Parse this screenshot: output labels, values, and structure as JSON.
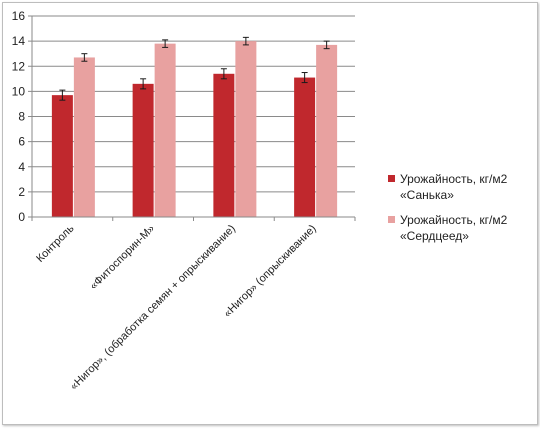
{
  "chart_data": {
    "type": "bar",
    "categories": [
      "Контроль",
      "«Фитоспорин-М»",
      "«Нигор», (обработка семян + опрыскивание)",
      "«Нигор» (опрыскивание)"
    ],
    "series": [
      {
        "name": [
          "Урожайность, кг/м2",
          "«Санька»"
        ],
        "color": "#c0282d",
        "values": [
          9.7,
          10.6,
          11.4,
          11.1
        ],
        "error": [
          0.4,
          0.4,
          0.4,
          0.4
        ]
      },
      {
        "name": [
          "Урожайность, кг/м2",
          "«Сердцеед»"
        ],
        "color": "#e8a1a0",
        "values": [
          12.7,
          13.8,
          14.0,
          13.7
        ],
        "error": [
          0.3,
          0.3,
          0.3,
          0.3
        ]
      }
    ],
    "ylim": [
      0,
      16
    ],
    "yticks": [
      "0",
      "2",
      "4",
      "6",
      "8",
      "10",
      "12",
      "14",
      "16"
    ],
    "grid": true,
    "legend_position": "right"
  }
}
